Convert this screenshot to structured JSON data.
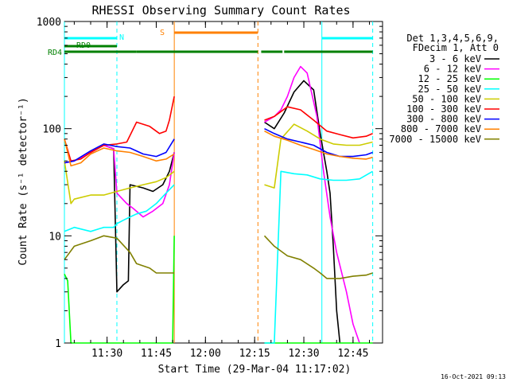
{
  "chart_data": {
    "type": "line",
    "title": "RHESSI Observing Summary Count Rates",
    "xlabel": "Start Time (29-Mar-04 11:17:02)",
    "ylabel": "Count Rate (s⁻¹ detector⁻¹)",
    "yscale": "log",
    "ylim": [
      1,
      1000
    ],
    "xlim_minutes": [
      0,
      97
    ],
    "x_ticks": [
      {
        "t": 13,
        "label": "11:30"
      },
      {
        "t": 28,
        "label": "11:45"
      },
      {
        "t": 43,
        "label": "12:00"
      },
      {
        "t": 58,
        "label": "12:15"
      },
      {
        "t": 73,
        "label": "12:30"
      },
      {
        "t": 88,
        "label": "12:45"
      }
    ],
    "y_ticks": [
      {
        "v": 1,
        "label": "1"
      },
      {
        "v": 10,
        "label": "10"
      },
      {
        "v": 100,
        "label": "100"
      },
      {
        "v": 1000,
        "label": "1000"
      }
    ],
    "legend": {
      "header": [
        "Det 1,3,4,5,6,9,",
        "FDecim 1, Att 0"
      ],
      "entries": [
        {
          "label": "3 - 6 keV",
          "color": "#000000"
        },
        {
          "label": "6 - 12 keV",
          "color": "#ff00ff"
        },
        {
          "label": "12 - 25 keV",
          "color": "#00ff00"
        },
        {
          "label": "25 - 50 keV",
          "color": "#00ffff"
        },
        {
          "label": "50 - 100 keV",
          "color": "#cccc00"
        },
        {
          "label": "100 - 300 keV",
          "color": "#ff0000"
        },
        {
          "label": "300 - 800 keV",
          "color": "#0000ff"
        },
        {
          "label": "800 - 7000 keV",
          "color": "#ff8000"
        },
        {
          "label": "7000 - 15000 keV",
          "color": "#808000"
        }
      ]
    },
    "flags": [
      {
        "label": "N",
        "color": "#00ffff",
        "segments": [
          [
            0,
            16
          ],
          [
            78.5,
            94
          ]
        ]
      },
      {
        "label": "S",
        "color": "#ff8000",
        "segments": [
          [
            33.5,
            59
          ]
        ]
      },
      {
        "label": "RD0",
        "color": "#008000",
        "segments": [
          [
            0,
            16
          ]
        ]
      },
      {
        "label": "RD4",
        "color": "#008000",
        "segments": [
          [
            0,
            22
          ],
          [
            22,
            59
          ],
          [
            60,
            66.5
          ],
          [
            67,
            94
          ]
        ]
      }
    ],
    "vertical_markers": [
      {
        "t": 0,
        "color": "#00ffff",
        "style": "solid"
      },
      {
        "t": 16,
        "color": "#00ffff",
        "style": "dashed"
      },
      {
        "t": 33.5,
        "color": "#ff8000",
        "style": "solid"
      },
      {
        "t": 59,
        "color": "#ff8000",
        "style": "dashed"
      },
      {
        "t": 78.5,
        "color": "#00ffff",
        "style": "solid"
      },
      {
        "t": 94,
        "color": "#00ffff",
        "style": "dashed"
      }
    ],
    "data_gap_minutes": [
      33.5,
      61
    ],
    "series": [
      {
        "name": "3 - 6 keV",
        "color": "#000000",
        "points": [
          [
            0,
            48
          ],
          [
            3,
            50
          ],
          [
            8,
            60
          ],
          [
            12,
            70
          ],
          [
            15,
            65
          ],
          [
            16,
            3
          ],
          [
            18,
            3.5
          ],
          [
            19.5,
            3.8
          ],
          [
            20,
            30
          ],
          [
            24,
            28
          ],
          [
            27,
            26
          ],
          [
            30,
            30
          ],
          [
            32,
            40
          ],
          [
            33.5,
            60
          ],
          [
            61,
            115
          ],
          [
            64,
            100
          ],
          [
            67,
            140
          ],
          [
            70,
            220
          ],
          [
            73,
            280
          ],
          [
            76,
            230
          ],
          [
            78,
            90
          ],
          [
            80,
            40
          ],
          [
            81,
            25
          ],
          [
            82,
            8
          ],
          [
            83,
            2
          ],
          [
            84,
            1
          ]
        ]
      },
      {
        "name": "6 - 12 keV",
        "color": "#ff00ff",
        "points": [
          [
            0,
            48
          ],
          [
            3,
            50
          ],
          [
            8,
            60
          ],
          [
            12,
            70
          ],
          [
            15,
            65
          ],
          [
            16,
            25
          ],
          [
            19,
            20
          ],
          [
            21,
            18
          ],
          [
            24,
            15
          ],
          [
            27,
            17
          ],
          [
            30,
            20
          ],
          [
            32,
            30
          ],
          [
            33.5,
            60
          ],
          [
            61,
            115
          ],
          [
            64,
            130
          ],
          [
            66,
            150
          ],
          [
            68,
            200
          ],
          [
            70,
            300
          ],
          [
            72,
            380
          ],
          [
            74,
            330
          ],
          [
            77,
            130
          ],
          [
            79,
            40
          ],
          [
            81,
            15
          ],
          [
            83,
            7
          ],
          [
            86,
            3
          ],
          [
            88,
            1.5
          ],
          [
            90,
            1
          ]
        ]
      },
      {
        "name": "12 - 25 keV",
        "color": "#00ff00",
        "points": [
          [
            0,
            4.4
          ],
          [
            1,
            3.8
          ],
          [
            2,
            1
          ],
          [
            33,
            1
          ],
          [
            33.5,
            10
          ],
          [
            61,
            1
          ],
          [
            94,
            1
          ]
        ]
      },
      {
        "name": "25 - 50 keV",
        "color": "#00ffff",
        "points": [
          [
            0,
            11
          ],
          [
            3,
            12
          ],
          [
            8,
            11
          ],
          [
            12,
            12
          ],
          [
            15,
            12
          ],
          [
            16,
            13
          ],
          [
            18,
            14
          ],
          [
            20,
            15
          ],
          [
            22,
            16
          ],
          [
            25,
            17
          ],
          [
            28,
            20
          ],
          [
            31,
            25
          ],
          [
            33.5,
            30
          ],
          [
            61,
            1
          ],
          [
            64,
            1
          ],
          [
            66,
            40
          ],
          [
            70,
            38
          ],
          [
            74,
            37
          ],
          [
            78,
            34
          ],
          [
            82,
            33
          ],
          [
            86,
            33
          ],
          [
            90,
            34
          ],
          [
            94,
            40
          ]
        ]
      },
      {
        "name": "50 - 100 keV",
        "color": "#cccc00",
        "points": [
          [
            0,
            50
          ],
          [
            2,
            20
          ],
          [
            3,
            22
          ],
          [
            8,
            24
          ],
          [
            12,
            24
          ],
          [
            16,
            26
          ],
          [
            20,
            28
          ],
          [
            24,
            30
          ],
          [
            28,
            32
          ],
          [
            31,
            35
          ],
          [
            33.5,
            40
          ],
          [
            61,
            30
          ],
          [
            64,
            28
          ],
          [
            66,
            80
          ],
          [
            70,
            110
          ],
          [
            74,
            95
          ],
          [
            78,
            80
          ],
          [
            82,
            72
          ],
          [
            86,
            70
          ],
          [
            90,
            70
          ],
          [
            94,
            75
          ]
        ]
      },
      {
        "name": "100 - 300 keV",
        "color": "#ff0000",
        "points": [
          [
            0,
            80
          ],
          [
            2,
            50
          ],
          [
            5,
            52
          ],
          [
            8,
            60
          ],
          [
            12,
            70
          ],
          [
            16,
            72
          ],
          [
            19,
            75
          ],
          [
            22,
            115
          ],
          [
            26,
            105
          ],
          [
            29,
            90
          ],
          [
            31,
            95
          ],
          [
            32,
            120
          ],
          [
            33.5,
            200
          ],
          [
            61,
            120
          ],
          [
            64,
            130
          ],
          [
            68,
            160
          ],
          [
            72,
            150
          ],
          [
            76,
            120
          ],
          [
            80,
            95
          ],
          [
            84,
            88
          ],
          [
            88,
            82
          ],
          [
            92,
            85
          ],
          [
            94,
            90
          ]
        ]
      },
      {
        "name": "300 - 800 keV",
        "color": "#0000ff",
        "points": [
          [
            0,
            48
          ],
          [
            3,
            50
          ],
          [
            8,
            62
          ],
          [
            12,
            72
          ],
          [
            16,
            68
          ],
          [
            20,
            66
          ],
          [
            24,
            58
          ],
          [
            28,
            55
          ],
          [
            31,
            60
          ],
          [
            33.5,
            80
          ],
          [
            61,
            100
          ],
          [
            64,
            90
          ],
          [
            68,
            80
          ],
          [
            72,
            75
          ],
          [
            76,
            70
          ],
          [
            80,
            60
          ],
          [
            84,
            55
          ],
          [
            88,
            55
          ],
          [
            92,
            57
          ],
          [
            94,
            60
          ]
        ]
      },
      {
        "name": "800 - 7000 keV",
        "color": "#ff8000",
        "points": [
          [
            0,
            80
          ],
          [
            2,
            45
          ],
          [
            5,
            48
          ],
          [
            8,
            58
          ],
          [
            12,
            66
          ],
          [
            16,
            62
          ],
          [
            20,
            60
          ],
          [
            24,
            55
          ],
          [
            28,
            50
          ],
          [
            31,
            52
          ],
          [
            33.5,
            58
          ],
          [
            61,
            95
          ],
          [
            64,
            85
          ],
          [
            68,
            78
          ],
          [
            72,
            70
          ],
          [
            76,
            64
          ],
          [
            80,
            58
          ],
          [
            84,
            55
          ],
          [
            88,
            53
          ],
          [
            92,
            52
          ],
          [
            94,
            54
          ]
        ]
      },
      {
        "name": "7000 - 15000 keV",
        "color": "#808000",
        "points": [
          [
            0,
            6
          ],
          [
            3,
            8
          ],
          [
            8,
            9
          ],
          [
            12,
            10
          ],
          [
            16,
            9.5
          ],
          [
            20,
            7
          ],
          [
            22,
            5.5
          ],
          [
            26,
            5
          ],
          [
            28,
            4.5
          ],
          [
            31,
            4.5
          ],
          [
            33.5,
            4.5
          ],
          [
            61,
            10
          ],
          [
            64,
            8
          ],
          [
            68,
            6.5
          ],
          [
            72,
            6
          ],
          [
            76,
            5
          ],
          [
            78,
            4.5
          ],
          [
            80,
            4
          ],
          [
            84,
            4
          ],
          [
            88,
            4.2
          ],
          [
            92,
            4.3
          ],
          [
            94,
            4.5
          ]
        ]
      }
    ]
  },
  "footer_timestamp": "16-Oct-2021 09:13"
}
